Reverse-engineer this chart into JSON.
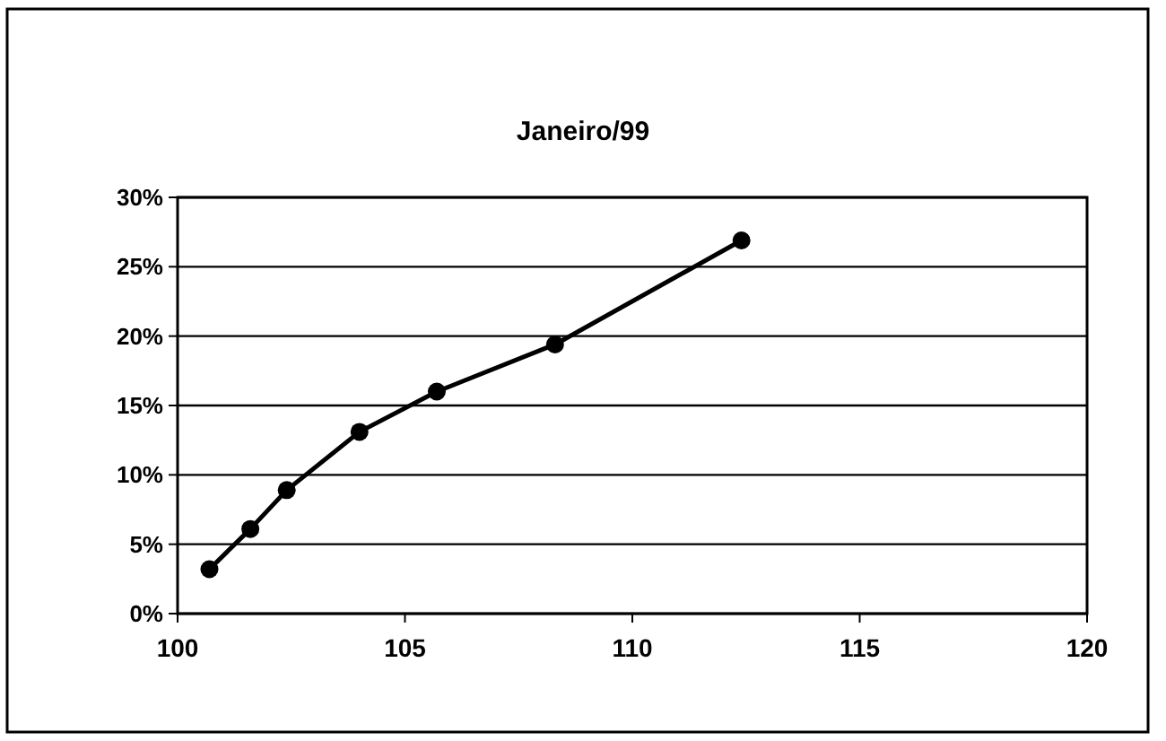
{
  "chart_data": {
    "type": "line",
    "title": "Janeiro/99",
    "x": [
      100.7,
      101.6,
      102.4,
      104.0,
      105.7,
      108.3,
      112.4
    ],
    "series": [
      {
        "color": "#000000",
        "values": [
          3.2,
          6.1,
          8.9,
          13.1,
          16.0,
          19.4,
          26.9
        ]
      }
    ],
    "xlim": [
      100,
      120
    ],
    "xticks": [
      100,
      105,
      110,
      115,
      120
    ],
    "ylim": [
      0,
      30
    ],
    "yticks": [
      {
        "value": 0,
        "label": "0%"
      },
      {
        "value": 5,
        "label": "5%"
      },
      {
        "value": 10,
        "label": "10%"
      },
      {
        "value": 15,
        "label": "15%"
      },
      {
        "value": 20,
        "label": "20%"
      },
      {
        "value": 25,
        "label": "25%"
      },
      {
        "value": 30,
        "label": "30%"
      }
    ],
    "grid": "y",
    "marker": "circle",
    "line_style": "solid"
  }
}
